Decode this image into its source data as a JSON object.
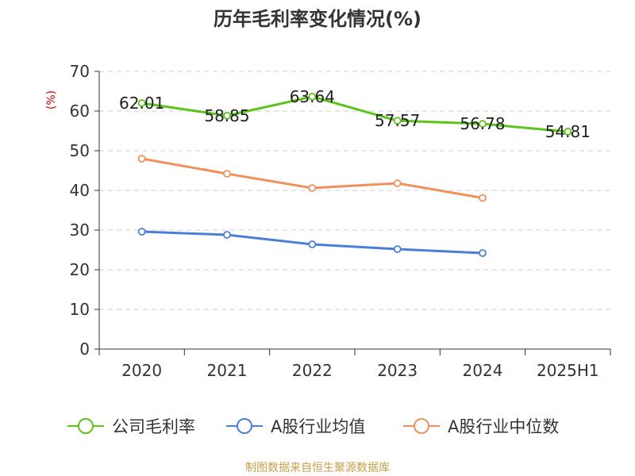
{
  "title": "历年毛利率变化情况(%)",
  "source": "制图数据来自恒生聚源数据库",
  "chart_data": {
    "type": "line",
    "title": "历年毛利率变化情况(%)",
    "ylabel": "(%)",
    "xlabel": "",
    "categories": [
      "2020",
      "2021",
      "2022",
      "2023",
      "2024",
      "2025H1"
    ],
    "ylim": [
      0,
      70
    ],
    "yticks": [
      0,
      10,
      20,
      30,
      40,
      50,
      60,
      70
    ],
    "grid": true,
    "legend": "bottom",
    "series": [
      {
        "name": "公司毛利率",
        "color": "#5dc31b",
        "values": [
          62.01,
          58.85,
          63.64,
          57.57,
          56.78,
          54.81
        ],
        "labels": [
          "62.01",
          "58.85",
          "63.64",
          "57.57",
          "56.78",
          "54.81"
        ]
      },
      {
        "name": "A股行业均值",
        "color": "#4a7fd8",
        "values": [
          29.6,
          28.8,
          26.4,
          25.2,
          24.2,
          null
        ]
      },
      {
        "name": "A股行业中位数",
        "color": "#f0915c",
        "values": [
          48.0,
          44.2,
          40.6,
          41.8,
          38.1,
          null
        ]
      }
    ]
  }
}
